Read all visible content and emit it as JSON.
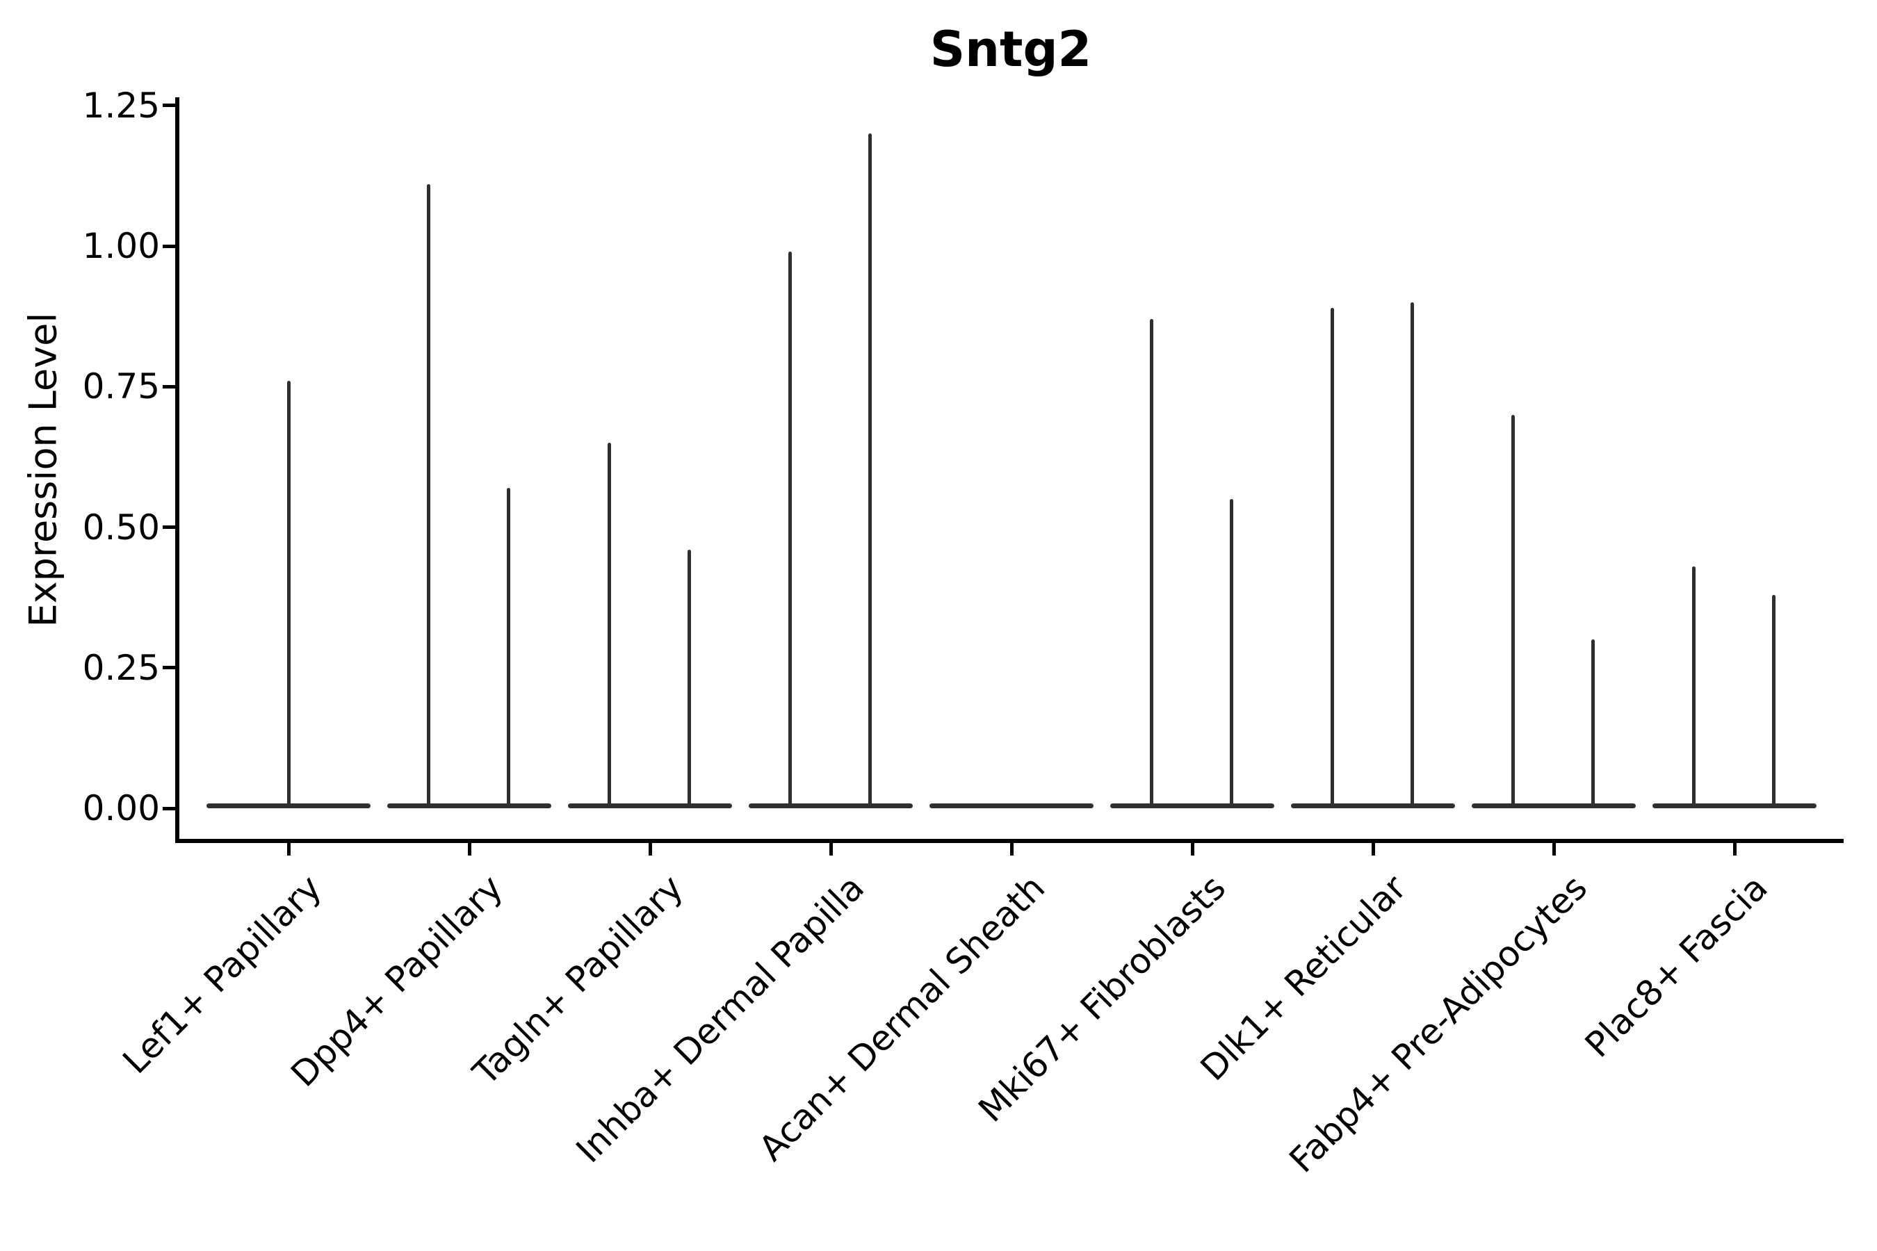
{
  "chart_data": {
    "type": "violin",
    "title": "Sntg2",
    "ylabel": "Expression Level",
    "xlabel": "",
    "ylim": [
      -0.058,
      1.264
    ],
    "grid": false,
    "legend": null,
    "yticks": {
      "values": [
        0,
        0.25,
        0.5,
        0.75,
        1.0,
        1.25
      ],
      "labels": [
        "0.00",
        "0.25",
        "0.50",
        "0.75",
        "1.00",
        "1.25"
      ]
    },
    "categories": [
      "Lef1+ Papillary",
      "Dpp4+ Papillary",
      "Tagln+ Papillary",
      "Inhba+ Dermal Papilla",
      "Acan+ Dermal Sheath",
      "Mki67+ Fibroblasts",
      "Dlk1+ Reticular",
      "Fabp4+ Pre-Adipocytes",
      "Plac8+ Fascia"
    ],
    "series": [
      {
        "category": "Lef1+ Papillary",
        "spikes": [
          {
            "x_offset_frac": 0.0,
            "value": 0.76
          }
        ]
      },
      {
        "category": "Dpp4+ Papillary",
        "spikes": [
          {
            "x_offset_frac": -0.228,
            "value": 1.11
          },
          {
            "x_offset_frac": 0.217,
            "value": 0.57
          }
        ]
      },
      {
        "category": "Tagln+ Papillary",
        "spikes": [
          {
            "x_offset_frac": -0.228,
            "value": 0.65
          },
          {
            "x_offset_frac": 0.217,
            "value": 0.46
          }
        ]
      },
      {
        "category": "Inhba+ Dermal Papilla",
        "spikes": [
          {
            "x_offset_frac": -0.228,
            "value": 0.99
          },
          {
            "x_offset_frac": 0.217,
            "value": 1.2
          }
        ]
      },
      {
        "category": "Acan+ Dermal Sheath",
        "spikes": []
      },
      {
        "category": "Mki67+ Fibroblasts",
        "spikes": [
          {
            "x_offset_frac": -0.228,
            "value": 0.87
          },
          {
            "x_offset_frac": 0.217,
            "value": 0.55
          }
        ]
      },
      {
        "category": "Dlk1+ Reticular",
        "spikes": [
          {
            "x_offset_frac": -0.228,
            "value": 0.89
          },
          {
            "x_offset_frac": 0.217,
            "value": 0.9
          }
        ]
      },
      {
        "category": "Fabp4+ Pre-Adipocytes",
        "spikes": [
          {
            "x_offset_frac": -0.228,
            "value": 0.7
          },
          {
            "x_offset_frac": 0.217,
            "value": 0.3
          }
        ]
      },
      {
        "category": "Plac8+ Fascia",
        "spikes": [
          {
            "x_offset_frac": -0.228,
            "value": 0.43
          },
          {
            "x_offset_frac": 0.217,
            "value": 0.38
          }
        ]
      }
    ],
    "baseline_value": 0.0,
    "colors": {
      "violin": "#2f2f2f",
      "axis": "#000000",
      "text": "#000000",
      "background": "#ffffff"
    }
  }
}
